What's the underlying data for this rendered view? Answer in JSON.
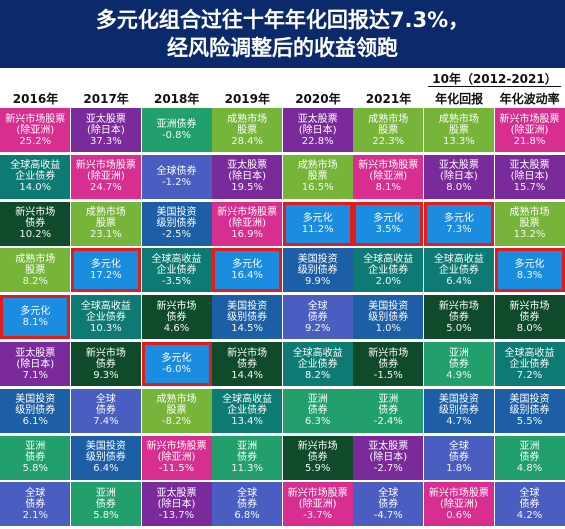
{
  "title_line1": "多元化组合过往十年年化回报达7.3%，",
  "title_line2": "经风险调整后的收益领跑",
  "period": "10年（2012-2021）",
  "chart_data": {
    "type": "table",
    "columns": [
      "2016年",
      "2017年",
      "2018年",
      "2019年",
      "2020年",
      "2021年",
      "年化回报",
      "年化波动率"
    ],
    "colors": {
      "emd_ex_asia": "#d72e8f",
      "asia_ex_japan": "#7b2a9b",
      "asia_bond": "#21a06b",
      "global_bond": "#4a5ec2",
      "dm_equity": "#76b43a",
      "global_hy": "#0d7a73",
      "em_bond": "#0f4a2a",
      "us_ig": "#1d5fa6",
      "diversified": "#1b8de0"
    },
    "grid": [
      [
        {
          "label": "新兴市场股票\n(除亚洲)",
          "value": "25.2%",
          "asset": "emd_ex_asia"
        },
        {
          "label": "全球高收益\n企业债券",
          "value": "14.0%",
          "asset": "global_hy"
        },
        {
          "label": "新兴市场\n债券",
          "value": "10.2%",
          "asset": "em_bond"
        },
        {
          "label": "成熟市场\n股票",
          "value": "8.2%",
          "asset": "dm_equity"
        },
        {
          "label": "多元化",
          "value": "8.1%",
          "asset": "diversified",
          "highlight": true
        },
        {
          "label": "亚太股票\n(除日本)",
          "value": "7.1%",
          "asset": "asia_ex_japan"
        },
        {
          "label": "美国投资\n级别债券",
          "value": "6.1%",
          "asset": "us_ig"
        },
        {
          "label": "亚洲\n债券",
          "value": "5.8%",
          "asset": "asia_bond"
        },
        {
          "label": "全球\n债券",
          "value": "2.1%",
          "asset": "global_bond"
        }
      ],
      [
        {
          "label": "亚太股票\n(除日本)",
          "value": "37.3%",
          "asset": "asia_ex_japan"
        },
        {
          "label": "新兴市场股票\n(除亚洲)",
          "value": "24.7%",
          "asset": "emd_ex_asia"
        },
        {
          "label": "成熟市场\n股票",
          "value": "23.1%",
          "asset": "dm_equity"
        },
        {
          "label": "多元化",
          "value": "17.2%",
          "asset": "diversified",
          "highlight": true
        },
        {
          "label": "全球高收益\n企业债券",
          "value": "10.3%",
          "asset": "global_hy"
        },
        {
          "label": "新兴市场\n债券",
          "value": "9.3%",
          "asset": "em_bond"
        },
        {
          "label": "全球\n债券",
          "value": "7.4%",
          "asset": "global_bond"
        },
        {
          "label": "美国投资\n级别债券",
          "value": "6.4%",
          "asset": "us_ig"
        },
        {
          "label": "亚洲\n债券",
          "value": "5.8%",
          "asset": "asia_bond"
        }
      ],
      [
        {
          "label": "亚洲债券",
          "value": "-0.8%",
          "asset": "asia_bond"
        },
        {
          "label": "全球债券",
          "value": "-1.2%",
          "asset": "global_bond"
        },
        {
          "label": "美国投资\n级别债券",
          "value": "-2.5%",
          "asset": "us_ig"
        },
        {
          "label": "全球高收益\n企业债券",
          "value": "-3.5%",
          "asset": "global_hy"
        },
        {
          "label": "新兴市场\n债券",
          "value": "4.6%",
          "asset": "em_bond"
        },
        {
          "label": "多元化",
          "value": "-6.0%",
          "asset": "diversified",
          "highlight": true
        },
        {
          "label": "成熟市场\n股票",
          "value": "-8.2%",
          "asset": "dm_equity"
        },
        {
          "label": "新兴市场股票\n(除亚洲)",
          "value": "-11.5%",
          "asset": "emd_ex_asia"
        },
        {
          "label": "亚太股票\n(除日本)",
          "value": "-13.7%",
          "asset": "asia_ex_japan"
        }
      ],
      [
        {
          "label": "成熟市场\n股票",
          "value": "28.4%",
          "asset": "dm_equity"
        },
        {
          "label": "亚太股票\n(除日本)",
          "value": "19.5%",
          "asset": "asia_ex_japan"
        },
        {
          "label": "新兴市场股票\n(除亚洲)",
          "value": "16.9%",
          "asset": "emd_ex_asia"
        },
        {
          "label": "多元化",
          "value": "16.4%",
          "asset": "diversified",
          "highlight": true
        },
        {
          "label": "美国投资\n级别债券",
          "value": "14.5%",
          "asset": "us_ig"
        },
        {
          "label": "新兴市场\n债券",
          "value": "14.4%",
          "asset": "em_bond"
        },
        {
          "label": "全球高收益\n企业债券",
          "value": "13.4%",
          "asset": "global_hy"
        },
        {
          "label": "亚洲\n债券",
          "value": "11.3%",
          "asset": "asia_bond"
        },
        {
          "label": "全球\n债券",
          "value": "6.8%",
          "asset": "global_bond"
        }
      ],
      [
        {
          "label": "亚太股票\n(除日本)",
          "value": "22.8%",
          "asset": "asia_ex_japan"
        },
        {
          "label": "成熟市场\n股票",
          "value": "16.5%",
          "asset": "dm_equity"
        },
        {
          "label": "多元化",
          "value": "11.2%",
          "asset": "diversified",
          "highlight": true
        },
        {
          "label": "美国投资\n级别债券",
          "value": "9.9%",
          "asset": "us_ig"
        },
        {
          "label": "全球\n债券",
          "value": "9.2%",
          "asset": "global_bond"
        },
        {
          "label": "全球高收益\n企业债券",
          "value": "8.2%",
          "asset": "global_hy"
        },
        {
          "label": "亚洲\n债券",
          "value": "6.3%",
          "asset": "asia_bond"
        },
        {
          "label": "新兴市场\n债券",
          "value": "5.9%",
          "asset": "em_bond"
        },
        {
          "label": "新兴市场股票\n(除亚洲)",
          "value": "-3.7%",
          "asset": "emd_ex_asia"
        }
      ],
      [
        {
          "label": "成熟市场\n股票",
          "value": "22.3%",
          "asset": "dm_equity"
        },
        {
          "label": "新兴市场股票\n(除亚洲)",
          "value": "8.1%",
          "asset": "emd_ex_asia"
        },
        {
          "label": "多元化",
          "value": "3.5%",
          "asset": "diversified",
          "highlight": true
        },
        {
          "label": "全球高收益\n企业债券",
          "value": "2.0%",
          "asset": "global_hy"
        },
        {
          "label": "美国投资\n级别债券",
          "value": "1.0%",
          "asset": "us_ig"
        },
        {
          "label": "新兴市场\n债券",
          "value": "-1.5%",
          "asset": "em_bond"
        },
        {
          "label": "亚洲\n债券",
          "value": "-2.4%",
          "asset": "asia_bond"
        },
        {
          "label": "亚太股票\n(除日本)",
          "value": "-2.7%",
          "asset": "asia_ex_japan"
        },
        {
          "label": "全球\n债券",
          "value": "-4.7%",
          "asset": "global_bond"
        }
      ],
      [
        {
          "label": "成熟市场\n股票",
          "value": "13.3%",
          "asset": "dm_equity"
        },
        {
          "label": "亚太股票\n(除日本)",
          "value": "8.0%",
          "asset": "asia_ex_japan"
        },
        {
          "label": "多元化",
          "value": "7.3%",
          "asset": "diversified",
          "highlight": true
        },
        {
          "label": "全球高收益\n企业债券",
          "value": "6.4%",
          "asset": "global_hy"
        },
        {
          "label": "新兴市场\n债券",
          "value": "5.0%",
          "asset": "em_bond"
        },
        {
          "label": "亚洲\n债券",
          "value": "4.9%",
          "asset": "asia_bond"
        },
        {
          "label": "美国投资\n级别债券",
          "value": "4.7%",
          "asset": "us_ig"
        },
        {
          "label": "全球\n债券",
          "value": "1.8%",
          "asset": "global_bond"
        },
        {
          "label": "新兴市场股票\n(除亚洲)",
          "value": "0.6%",
          "asset": "emd_ex_asia"
        }
      ],
      [
        {
          "label": "新兴市场股票\n(除亚洲)",
          "value": "21.8%",
          "asset": "emd_ex_asia"
        },
        {
          "label": "亚太股票\n(除日本)",
          "value": "15.7%",
          "asset": "asia_ex_japan"
        },
        {
          "label": "成熟市场\n股票",
          "value": "13.2%",
          "asset": "dm_equity"
        },
        {
          "label": "多元化",
          "value": "8.3%",
          "asset": "diversified",
          "highlight": true
        },
        {
          "label": "新兴市场\n债券",
          "value": "8.0%",
          "asset": "em_bond"
        },
        {
          "label": "全球高收益\n企业债券",
          "value": "7.2%",
          "asset": "global_hy"
        },
        {
          "label": "美国投资\n级别债券",
          "value": "5.5%",
          "asset": "us_ig"
        },
        {
          "label": "亚洲\n债券",
          "value": "4.8%",
          "asset": "asia_bond"
        },
        {
          "label": "全球\n债券",
          "value": "4.2%",
          "asset": "global_bond"
        }
      ]
    ]
  }
}
